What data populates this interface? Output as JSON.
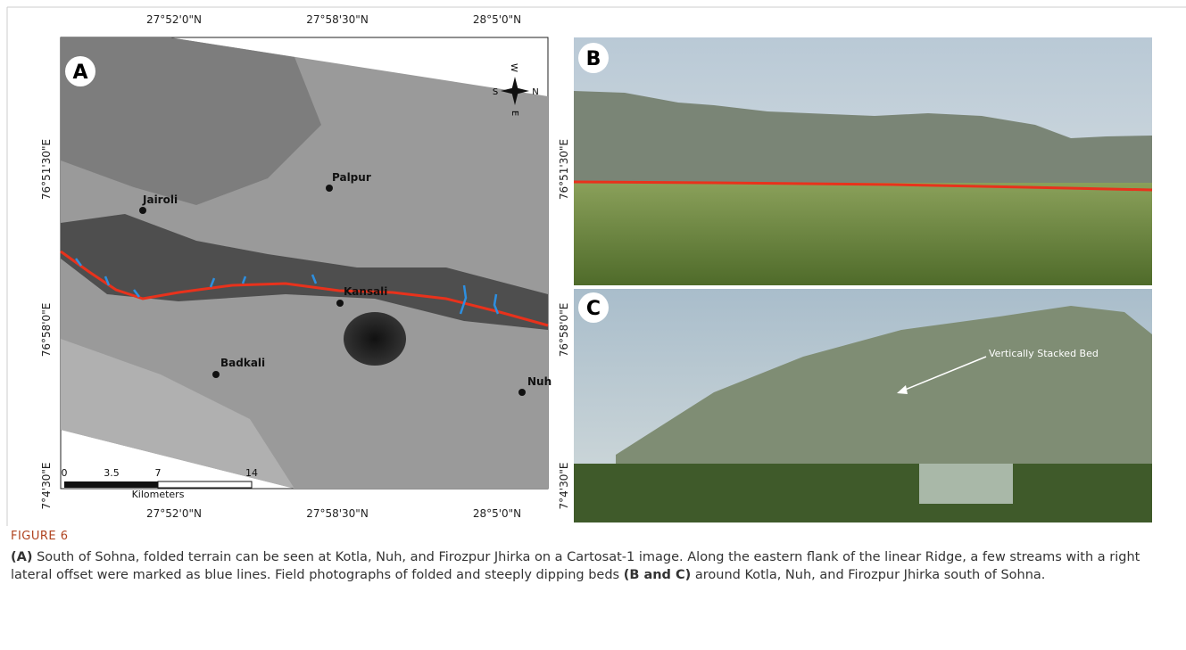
{
  "figure": {
    "map": {
      "panel_label": "A",
      "top_ticks": [
        "27°52'0\"N",
        "27°58'30\"N",
        "28°5'0\"N"
      ],
      "bottom_ticks": [
        "27°52'0\"N",
        "27°58'30\"N",
        "28°5'0\"N"
      ],
      "left_ticks": [
        "76°51'30\"E",
        "76°58'0\"E",
        "7°4'30\"E"
      ],
      "right_ticks": [
        "76°51'30\"E",
        "76°58'0\"E",
        "7°4'30\"E"
      ],
      "places": [
        "Jairoli",
        "Palpur",
        "Kansali",
        "Badkali",
        "Nuh"
      ],
      "compass": {
        "w": "W",
        "s": "S",
        "n": "N",
        "e": "E"
      },
      "scale_bar": {
        "ticks": [
          "0",
          "3.5",
          "7",
          "14"
        ],
        "unit": "Kilometers"
      }
    },
    "photo_b": {
      "panel_label": "B"
    },
    "photo_c": {
      "panel_label": "C",
      "annotation": "Vertically Stacked Bed"
    },
    "caption": {
      "figure_label": "FIGURE 6",
      "parts": [
        "(A)",
        "South of Sohna, folded terrain can be seen at Kotla, Nuh, and Firozpur Jhirka on a Cartosat-1 image. Along the eastern flank of the linear Ridge, a few streams with a right lateral offset were marked as blue lines. Field photographs of folded and steeply dipping beds",
        "(B and C)",
        "around Kotla, Nuh, and Firozpur Jhirka south of Sohna."
      ]
    }
  }
}
